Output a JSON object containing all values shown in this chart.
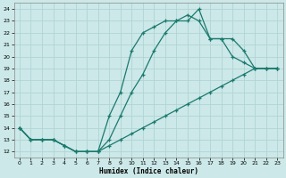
{
  "xlabel": "Humidex (Indice chaleur)",
  "bg_color": "#cce8e8",
  "grid_color": "#b0d4d4",
  "line_color": "#1a7a6e",
  "xlim": [
    -0.5,
    23.5
  ],
  "ylim": [
    11.5,
    24.5
  ],
  "xticks": [
    0,
    1,
    2,
    3,
    4,
    5,
    6,
    7,
    8,
    9,
    10,
    11,
    12,
    13,
    14,
    15,
    16,
    17,
    18,
    19,
    20,
    21,
    22,
    23
  ],
  "yticks": [
    12,
    13,
    14,
    15,
    16,
    17,
    18,
    19,
    20,
    21,
    22,
    23,
    24
  ],
  "line1_x": [
    0,
    1,
    2,
    3,
    4,
    5,
    6,
    7,
    8,
    9,
    10,
    11,
    12,
    13,
    14,
    15,
    16,
    17,
    18,
    19,
    20,
    21,
    22,
    23
  ],
  "line1_y": [
    14,
    13,
    13,
    13,
    12.5,
    12,
    12,
    12,
    12.5,
    13,
    13.5,
    14,
    14.5,
    15,
    15.5,
    16,
    16.5,
    17,
    17.5,
    18,
    18.5,
    19,
    19,
    19
  ],
  "line2_x": [
    0,
    1,
    2,
    3,
    4,
    5,
    6,
    7,
    8,
    9,
    10,
    11,
    12,
    13,
    14,
    15,
    16,
    17,
    18,
    19,
    20,
    21,
    22,
    23
  ],
  "line2_y": [
    14,
    13,
    13,
    13,
    12.5,
    12,
    12,
    12,
    13,
    15,
    17,
    18.5,
    20.5,
    22,
    23,
    23.5,
    23,
    21.5,
    21.5,
    20,
    19.5,
    19,
    19,
    19
  ],
  "line3_x": [
    0,
    1,
    2,
    3,
    4,
    5,
    6,
    7,
    8,
    9,
    10,
    11,
    12,
    13,
    14,
    15,
    16,
    17,
    18,
    19,
    20,
    21,
    22,
    23
  ],
  "line3_y": [
    14,
    13,
    13,
    13,
    12.5,
    12,
    12,
    12,
    15,
    17,
    20.5,
    22,
    22.5,
    23,
    23,
    23,
    24,
    21.5,
    21.5,
    21.5,
    20.5,
    19,
    19,
    19
  ]
}
